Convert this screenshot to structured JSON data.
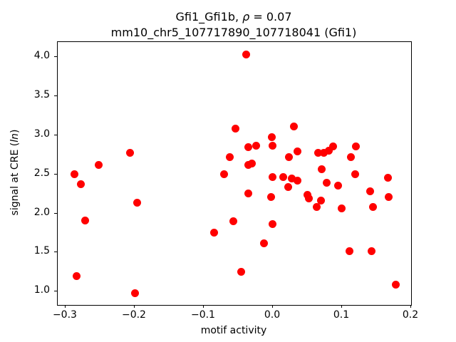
{
  "title": {
    "prefix": "Gfi1_Gfi1b, ",
    "rho": "ρ",
    "suffix": " = 0.07",
    "full": "Gfi1_Gfi1b, ρ = 0.07"
  },
  "subtitle": "mm10_chr5_107717890_107718041 (Gfi1)",
  "axis": {
    "xlabel": "motif activity",
    "ylabel_prefix": "signal at CRE (",
    "ylabel_math": "ln",
    "ylabel_suffix": ")",
    "ylabel_full": "signal at CRE (ln)"
  },
  "chart_data": {
    "type": "scatter",
    "title": "Gfi1_Gfi1b, ρ = 0.07",
    "subtitle": "mm10_chr5_107717890_107718041 (Gfi1)",
    "xlabel": "motif activity",
    "ylabel": "signal at CRE (ln)",
    "xlim": [
      -0.3113,
      0.2
    ],
    "ylim": [
      0.827,
      4.196
    ],
    "grid": false,
    "legend": "none",
    "marker_color": "#ff0000",
    "marker_diameter_px": 11,
    "xtick_values": [
      -0.3,
      -0.2,
      -0.1,
      0.0,
      0.1,
      0.2
    ],
    "xtick_labels": [
      "−0.3",
      "−0.2",
      "−0.1",
      "0.0",
      "0.1",
      "0.2"
    ],
    "ytick_values": [
      1.0,
      1.5,
      2.0,
      2.5,
      3.0,
      3.5,
      4.0
    ],
    "ytick_labels": [
      "1.0",
      "1.5",
      "2.0",
      "2.5",
      "3.0",
      "3.5",
      "4.0"
    ],
    "points": [
      [
        -0.287,
        2.5
      ],
      [
        -0.278,
        2.37
      ],
      [
        -0.284,
        1.2
      ],
      [
        -0.272,
        1.91
      ],
      [
        -0.252,
        2.62
      ],
      [
        -0.207,
        2.78
      ],
      [
        -0.196,
        2.14
      ],
      [
        -0.199,
        0.98
      ],
      [
        -0.085,
        1.75
      ],
      [
        -0.071,
        2.5
      ],
      [
        -0.062,
        2.72
      ],
      [
        -0.057,
        1.9
      ],
      [
        -0.054,
        3.09
      ],
      [
        -0.046,
        1.25
      ],
      [
        -0.039,
        4.04
      ],
      [
        -0.036,
        2.85
      ],
      [
        -0.036,
        2.62
      ],
      [
        -0.03,
        2.64
      ],
      [
        -0.024,
        2.87
      ],
      [
        -0.036,
        2.26
      ],
      [
        -0.013,
        1.62
      ],
      [
        -0.002,
        2.98
      ],
      [
        0.0,
        2.87
      ],
      [
        0.0,
        2.47
      ],
      [
        -0.003,
        2.21
      ],
      [
        0.0,
        1.86
      ],
      [
        0.015,
        2.47
      ],
      [
        0.022,
        2.34
      ],
      [
        0.023,
        2.72
      ],
      [
        0.027,
        2.45
      ],
      [
        0.03,
        3.11
      ],
      [
        0.036,
        2.79
      ],
      [
        0.036,
        2.42
      ],
      [
        0.05,
        2.24
      ],
      [
        0.052,
        2.19
      ],
      [
        0.063,
        2.08
      ],
      [
        0.065,
        2.78
      ],
      [
        0.07,
        2.16
      ],
      [
        0.071,
        2.57
      ],
      [
        0.074,
        2.78
      ],
      [
        0.078,
        2.39
      ],
      [
        0.081,
        2.8
      ],
      [
        0.087,
        2.86
      ],
      [
        0.094,
        2.36
      ],
      [
        0.099,
        2.06
      ],
      [
        0.111,
        1.52
      ],
      [
        0.113,
        2.72
      ],
      [
        0.119,
        2.5
      ],
      [
        0.12,
        2.86
      ],
      [
        0.141,
        2.28
      ],
      [
        0.143,
        1.52
      ],
      [
        0.145,
        2.08
      ],
      [
        0.167,
        2.46
      ],
      [
        0.168,
        2.21
      ],
      [
        0.178,
        1.09
      ]
    ]
  }
}
